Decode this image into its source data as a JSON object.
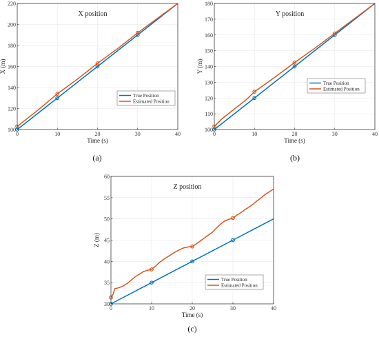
{
  "chart_data": [
    {
      "type": "line",
      "title": "X position",
      "xlabel": "Time (s)",
      "ylabel": "X (m)",
      "caption": "(a)",
      "xlim": [
        0,
        40
      ],
      "ylim": [
        100,
        220
      ],
      "xticks": [
        0,
        10,
        20,
        30,
        40
      ],
      "yticks": [
        100,
        120,
        140,
        160,
        180,
        200,
        220
      ],
      "grid": true,
      "legend": "center-right",
      "series": [
        {
          "name": "True Position",
          "color": "#0072BD",
          "x": [
            0,
            10,
            20,
            30,
            40
          ],
          "y": [
            100,
            130,
            160,
            190,
            220
          ],
          "markers": [
            [
              0,
              100
            ],
            [
              10,
              130
            ],
            [
              20,
              160
            ],
            [
              30,
              190
            ]
          ]
        },
        {
          "name": "Estimated Position",
          "color": "#D95319",
          "x": [
            0,
            2,
            5,
            10,
            15,
            20,
            25,
            30,
            35,
            40
          ],
          "y": [
            103,
            109,
            118,
            134,
            148,
            163,
            177,
            192,
            206,
            220
          ],
          "markers": [
            [
              0,
              103
            ],
            [
              10,
              134
            ],
            [
              20,
              163
            ],
            [
              30,
              192
            ]
          ]
        }
      ]
    },
    {
      "type": "line",
      "title": "Y position",
      "xlabel": "Time (s)",
      "ylabel": "Y (m)",
      "caption": "(b)",
      "xlim": [
        0,
        40
      ],
      "ylim": [
        100,
        180
      ],
      "xticks": [
        0,
        10,
        20,
        30,
        40
      ],
      "yticks": [
        100,
        110,
        120,
        130,
        140,
        150,
        160,
        170,
        180
      ],
      "grid": true,
      "legend": "center-right",
      "series": [
        {
          "name": "True Position",
          "color": "#0072BD",
          "x": [
            0,
            10,
            20,
            30,
            40
          ],
          "y": [
            100,
            120,
            140,
            160,
            180
          ],
          "markers": [
            [
              0,
              100
            ],
            [
              10,
              120
            ],
            [
              20,
              140
            ],
            [
              30,
              160
            ]
          ]
        },
        {
          "name": "Estimated Position",
          "color": "#D95319",
          "x": [
            0,
            2,
            5,
            8,
            10,
            15,
            20,
            25,
            30,
            35,
            40
          ],
          "y": [
            102,
            107,
            113,
            119,
            124,
            133,
            142.5,
            151.5,
            161,
            170.5,
            180
          ],
          "markers": [
            [
              0,
              102
            ],
            [
              10,
              124
            ],
            [
              20,
              142.5
            ],
            [
              30,
              161
            ]
          ]
        }
      ]
    },
    {
      "type": "line",
      "title": "Z position",
      "xlabel": "Time (s)",
      "ylabel": "Z (m)",
      "caption": "(c)",
      "xlim": [
        0,
        40
      ],
      "ylim": [
        30,
        60
      ],
      "xticks": [
        0,
        10,
        20,
        30,
        40
      ],
      "yticks": [
        30,
        35,
        40,
        45,
        50,
        55,
        60
      ],
      "grid": true,
      "legend": "center-right",
      "series": [
        {
          "name": "True Position",
          "color": "#0072BD",
          "x": [
            0,
            10,
            20,
            30,
            40
          ],
          "y": [
            30,
            35,
            40,
            45,
            50
          ],
          "markers": [
            [
              0,
              30
            ],
            [
              10,
              35
            ],
            [
              20,
              40
            ],
            [
              30,
              45
            ]
          ]
        },
        {
          "name": "Estimated Position",
          "color": "#D95319",
          "x": [
            0,
            0.5,
            1,
            2,
            3,
            4,
            5,
            6,
            7,
            8,
            9,
            10,
            11,
            12,
            13,
            14,
            15,
            16,
            17,
            18,
            19,
            20,
            21,
            22,
            23,
            24,
            25,
            26,
            27,
            28,
            29,
            30,
            31,
            32,
            33,
            34,
            35,
            36,
            37,
            38,
            39,
            40
          ],
          "y": [
            31.5,
            32.2,
            33.6,
            33.8,
            34.2,
            34.8,
            35.6,
            36.4,
            37.0,
            37.6,
            37.9,
            38.1,
            38.9,
            39.8,
            40.5,
            41.1,
            41.7,
            42.3,
            42.8,
            43.2,
            43.4,
            43.5,
            44.1,
            44.8,
            45.5,
            46.2,
            46.9,
            47.9,
            48.8,
            49.5,
            49.9,
            50.2,
            50.9,
            51.5,
            52.2,
            52.8,
            53.5,
            54.3,
            55.0,
            55.8,
            56.4,
            57.0
          ],
          "markers": [
            [
              0,
              31.5
            ],
            [
              10,
              38.1
            ],
            [
              20,
              43.5
            ],
            [
              30,
              50.2
            ]
          ]
        }
      ]
    }
  ]
}
